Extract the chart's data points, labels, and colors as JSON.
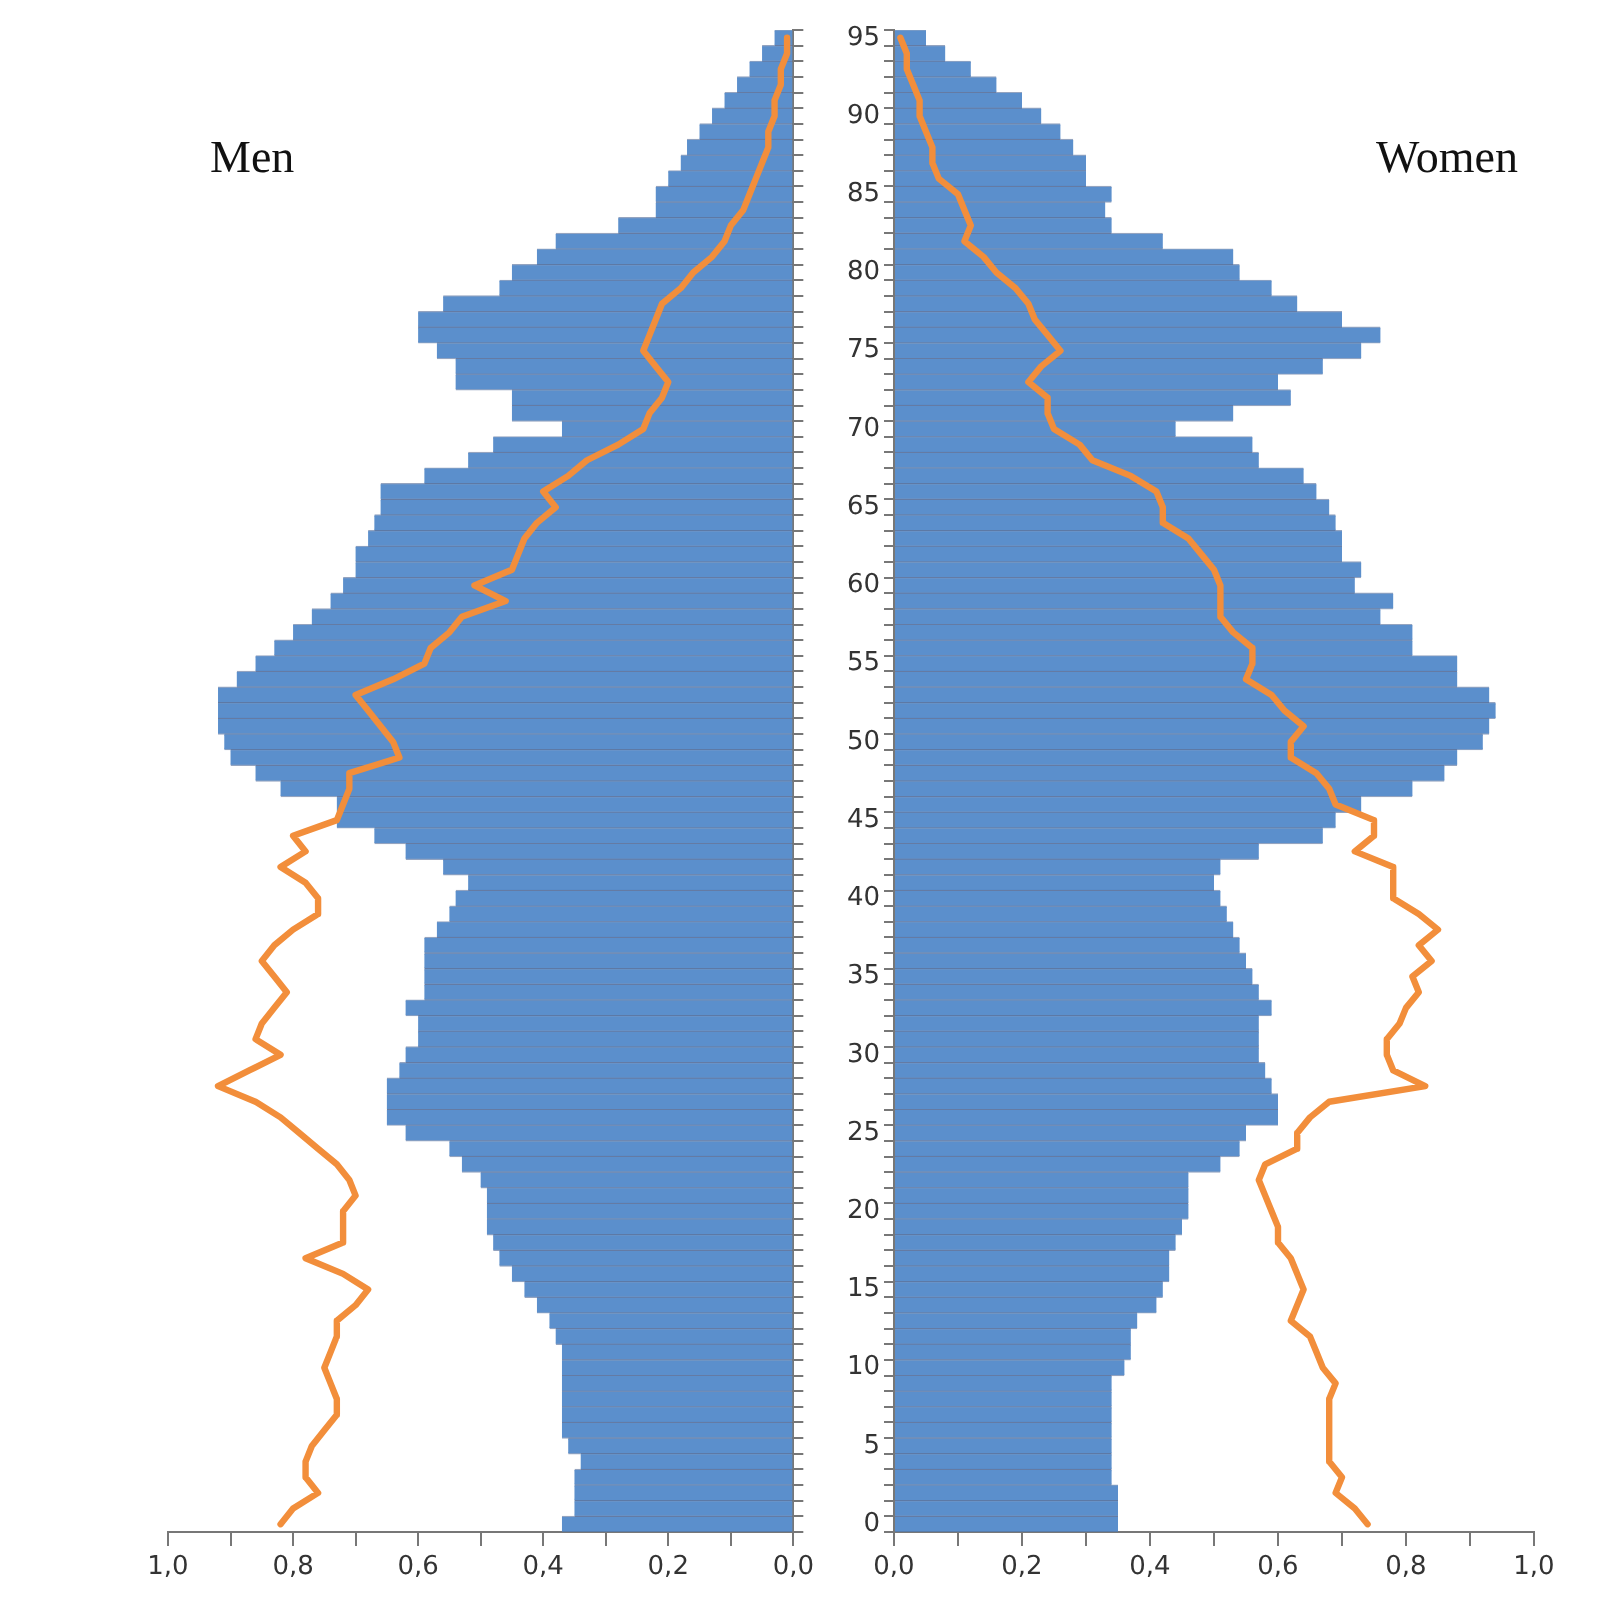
{
  "chart_data": [
    {
      "type": "bar",
      "orientation": "horizontal",
      "title": "Men",
      "tick_labels": "x",
      "categories": [
        "95",
        null,
        null,
        null,
        null,
        "90",
        null,
        null,
        null,
        null,
        "85",
        null,
        null,
        null,
        null,
        "80",
        null,
        null,
        null,
        null,
        "75",
        null,
        null,
        null,
        null,
        "70",
        null,
        null,
        null,
        null,
        "65",
        null,
        null,
        null,
        null,
        "60",
        null,
        null,
        null,
        null,
        "55",
        null,
        null,
        null,
        null,
        "50",
        null,
        null,
        null,
        null,
        "45",
        null,
        null,
        null,
        null,
        "40",
        null,
        null,
        null,
        null,
        "35",
        null,
        null,
        null,
        null,
        "30",
        null,
        null,
        null,
        null,
        "25",
        null,
        null,
        null,
        null,
        "20",
        null,
        null,
        null,
        null,
        "15",
        null,
        null,
        null,
        null,
        "10",
        null,
        null,
        null,
        null,
        "5",
        null,
        null,
        null,
        null,
        "0"
      ],
      "series": [
        {
          "type": "bar",
          "color": "#5b8fcc",
          "values": [
            0.03,
            0.05,
            0.07,
            0.09,
            0.11,
            0.13,
            0.15,
            0.17,
            0.18,
            0.2,
            0.22,
            0.22,
            0.28,
            0.38,
            0.41,
            0.45,
            0.47,
            0.56,
            0.6,
            0.6,
            0.57,
            0.54,
            0.54,
            0.45,
            0.45,
            0.37,
            0.48,
            0.52,
            0.59,
            0.66,
            0.66,
            0.67,
            0.68,
            0.7,
            0.7,
            0.72,
            0.74,
            0.77,
            0.8,
            0.83,
            0.86,
            0.89,
            0.92,
            0.92,
            0.92,
            0.91,
            0.9,
            0.86,
            0.82,
            0.73,
            0.73,
            0.67,
            0.62,
            0.56,
            0.52,
            0.54,
            0.55,
            0.57,
            0.59,
            0.59,
            0.59,
            0.59,
            0.62,
            0.6,
            0.6,
            0.62,
            0.63,
            0.65,
            0.65,
            0.65,
            0.62,
            0.55,
            0.53,
            0.5,
            0.49,
            0.49,
            0.49,
            0.48,
            0.47,
            0.45,
            0.43,
            0.41,
            0.39,
            0.38,
            0.37,
            0.37,
            0.37,
            0.37,
            0.37,
            0.37,
            0.36,
            0.34,
            0.35,
            0.35,
            0.35,
            0.37
          ]
        },
        {
          "type": "line",
          "color": "#f28e3b",
          "values": [
            0.01,
            0.01,
            0.02,
            0.02,
            0.03,
            0.03,
            0.04,
            0.04,
            0.05,
            0.06,
            0.07,
            0.08,
            0.1,
            0.11,
            0.13,
            0.16,
            0.18,
            0.21,
            0.22,
            0.23,
            0.24,
            0.22,
            0.2,
            0.21,
            0.23,
            0.24,
            0.28,
            0.33,
            0.36,
            0.4,
            0.38,
            0.41,
            0.43,
            0.44,
            0.45,
            0.51,
            0.46,
            0.53,
            0.55,
            0.58,
            0.59,
            0.64,
            0.7,
            0.68,
            0.66,
            0.64,
            0.63,
            0.71,
            0.71,
            0.72,
            0.73,
            0.8,
            0.78,
            0.82,
            0.78,
            0.76,
            0.76,
            0.8,
            0.83,
            0.85,
            0.83,
            0.81,
            0.83,
            0.85,
            0.86,
            0.82,
            0.87,
            0.92,
            0.86,
            0.82,
            0.79,
            0.76,
            0.73,
            0.71,
            0.7,
            0.72,
            0.72,
            0.72,
            0.78,
            0.72,
            0.68,
            0.7,
            0.73,
            0.73,
            0.74,
            0.75,
            0.74,
            0.73,
            0.73,
            0.75,
            0.77,
            0.78,
            0.78,
            0.76,
            0.8,
            0.82
          ]
        }
      ],
      "xlim": [
        1,
        0
      ],
      "xticks": [
        {
          "value": 1,
          "label": "1,0"
        },
        {
          "value": 0.9,
          "label": null
        },
        {
          "value": 0.8,
          "label": "0,8"
        },
        {
          "value": 0.7,
          "label": null
        },
        {
          "value": 0.6,
          "label": "0,6"
        },
        {
          "value": 0.5,
          "label": null
        },
        {
          "value": 0.4,
          "label": "0,4"
        },
        {
          "value": 0.3,
          "label": null
        },
        {
          "value": 0.2,
          "label": "0,2"
        },
        {
          "value": 0.1,
          "label": null
        },
        {
          "value": 0,
          "label": "0,0"
        }
      ]
    },
    {
      "type": "bar",
      "orientation": "horizontal",
      "title": "Women",
      "categories": [
        "95",
        null,
        null,
        null,
        null,
        "90",
        null,
        null,
        null,
        null,
        "85",
        null,
        null,
        null,
        null,
        "80",
        null,
        null,
        null,
        null,
        "75",
        null,
        null,
        null,
        null,
        "70",
        null,
        null,
        null,
        null,
        "65",
        null,
        null,
        null,
        null,
        "60",
        null,
        null,
        null,
        null,
        "55",
        null,
        null,
        null,
        null,
        "50",
        null,
        null,
        null,
        null,
        "45",
        null,
        null,
        null,
        null,
        "40",
        null,
        null,
        null,
        null,
        "35",
        null,
        null,
        null,
        null,
        "30",
        null,
        null,
        null,
        null,
        "25",
        null,
        null,
        null,
        null,
        "20",
        null,
        null,
        null,
        null,
        "15",
        null,
        null,
        null,
        null,
        "10",
        null,
        null,
        null,
        null,
        "5",
        null,
        null,
        null,
        null,
        "0"
      ],
      "series": [
        {
          "type": "bar",
          "color": "#5b8fcc",
          "values": [
            0.05,
            0.08,
            0.12,
            0.16,
            0.2,
            0.23,
            0.26,
            0.28,
            0.3,
            0.3,
            0.34,
            0.33,
            0.34,
            0.42,
            0.53,
            0.54,
            0.59,
            0.63,
            0.7,
            0.76,
            0.73,
            0.67,
            0.6,
            0.62,
            0.53,
            0.44,
            0.56,
            0.57,
            0.64,
            0.66,
            0.68,
            0.69,
            0.7,
            0.7,
            0.73,
            0.72,
            0.78,
            0.76,
            0.81,
            0.81,
            0.88,
            0.88,
            0.93,
            0.94,
            0.93,
            0.92,
            0.88,
            0.86,
            0.81,
            0.73,
            0.69,
            0.67,
            0.57,
            0.51,
            0.5,
            0.51,
            0.52,
            0.53,
            0.54,
            0.55,
            0.56,
            0.57,
            0.59,
            0.57,
            0.57,
            0.57,
            0.58,
            0.59,
            0.6,
            0.6,
            0.55,
            0.54,
            0.51,
            0.46,
            0.46,
            0.46,
            0.45,
            0.44,
            0.43,
            0.43,
            0.42,
            0.41,
            0.38,
            0.37,
            0.37,
            0.36,
            0.34,
            0.34,
            0.34,
            0.34,
            0.34,
            0.34,
            0.34,
            0.35,
            0.35,
            0.35
          ]
        },
        {
          "type": "line",
          "color": "#f28e3b",
          "values": [
            0.01,
            0.02,
            0.02,
            0.03,
            0.04,
            0.04,
            0.05,
            0.06,
            0.06,
            0.07,
            0.1,
            0.11,
            0.12,
            0.11,
            0.14,
            0.16,
            0.19,
            0.21,
            0.22,
            0.24,
            0.26,
            0.23,
            0.21,
            0.24,
            0.24,
            0.25,
            0.29,
            0.31,
            0.37,
            0.41,
            0.42,
            0.42,
            0.46,
            0.48,
            0.5,
            0.51,
            0.51,
            0.51,
            0.53,
            0.56,
            0.56,
            0.55,
            0.59,
            0.61,
            0.64,
            0.62,
            0.62,
            0.66,
            0.68,
            0.69,
            0.75,
            0.75,
            0.72,
            0.78,
            0.78,
            0.78,
            0.82,
            0.85,
            0.82,
            0.84,
            0.81,
            0.82,
            0.8,
            0.79,
            0.77,
            0.77,
            0.78,
            0.83,
            0.68,
            0.65,
            0.63,
            0.63,
            0.58,
            0.57,
            0.58,
            0.59,
            0.6,
            0.6,
            0.62,
            0.63,
            0.64,
            0.63,
            0.62,
            0.65,
            0.66,
            0.67,
            0.69,
            0.68,
            0.68,
            0.68,
            0.68,
            0.68,
            0.7,
            0.69,
            0.72,
            0.74
          ]
        }
      ],
      "xlim": [
        0,
        1
      ],
      "xticks": [
        {
          "value": 0,
          "label": "0,0"
        },
        {
          "value": 0.1,
          "label": null
        },
        {
          "value": 0.2,
          "label": "0,2"
        },
        {
          "value": 0.3,
          "label": null
        },
        {
          "value": 0.4,
          "label": "0,4"
        },
        {
          "value": 0.5,
          "label": null
        },
        {
          "value": 0.6,
          "label": "0,6"
        },
        {
          "value": 0.7,
          "label": null
        },
        {
          "value": 0.8,
          "label": "0,8"
        },
        {
          "value": 0.9,
          "label": null
        },
        {
          "value": 1,
          "label": "1,0"
        }
      ]
    }
  ]
}
